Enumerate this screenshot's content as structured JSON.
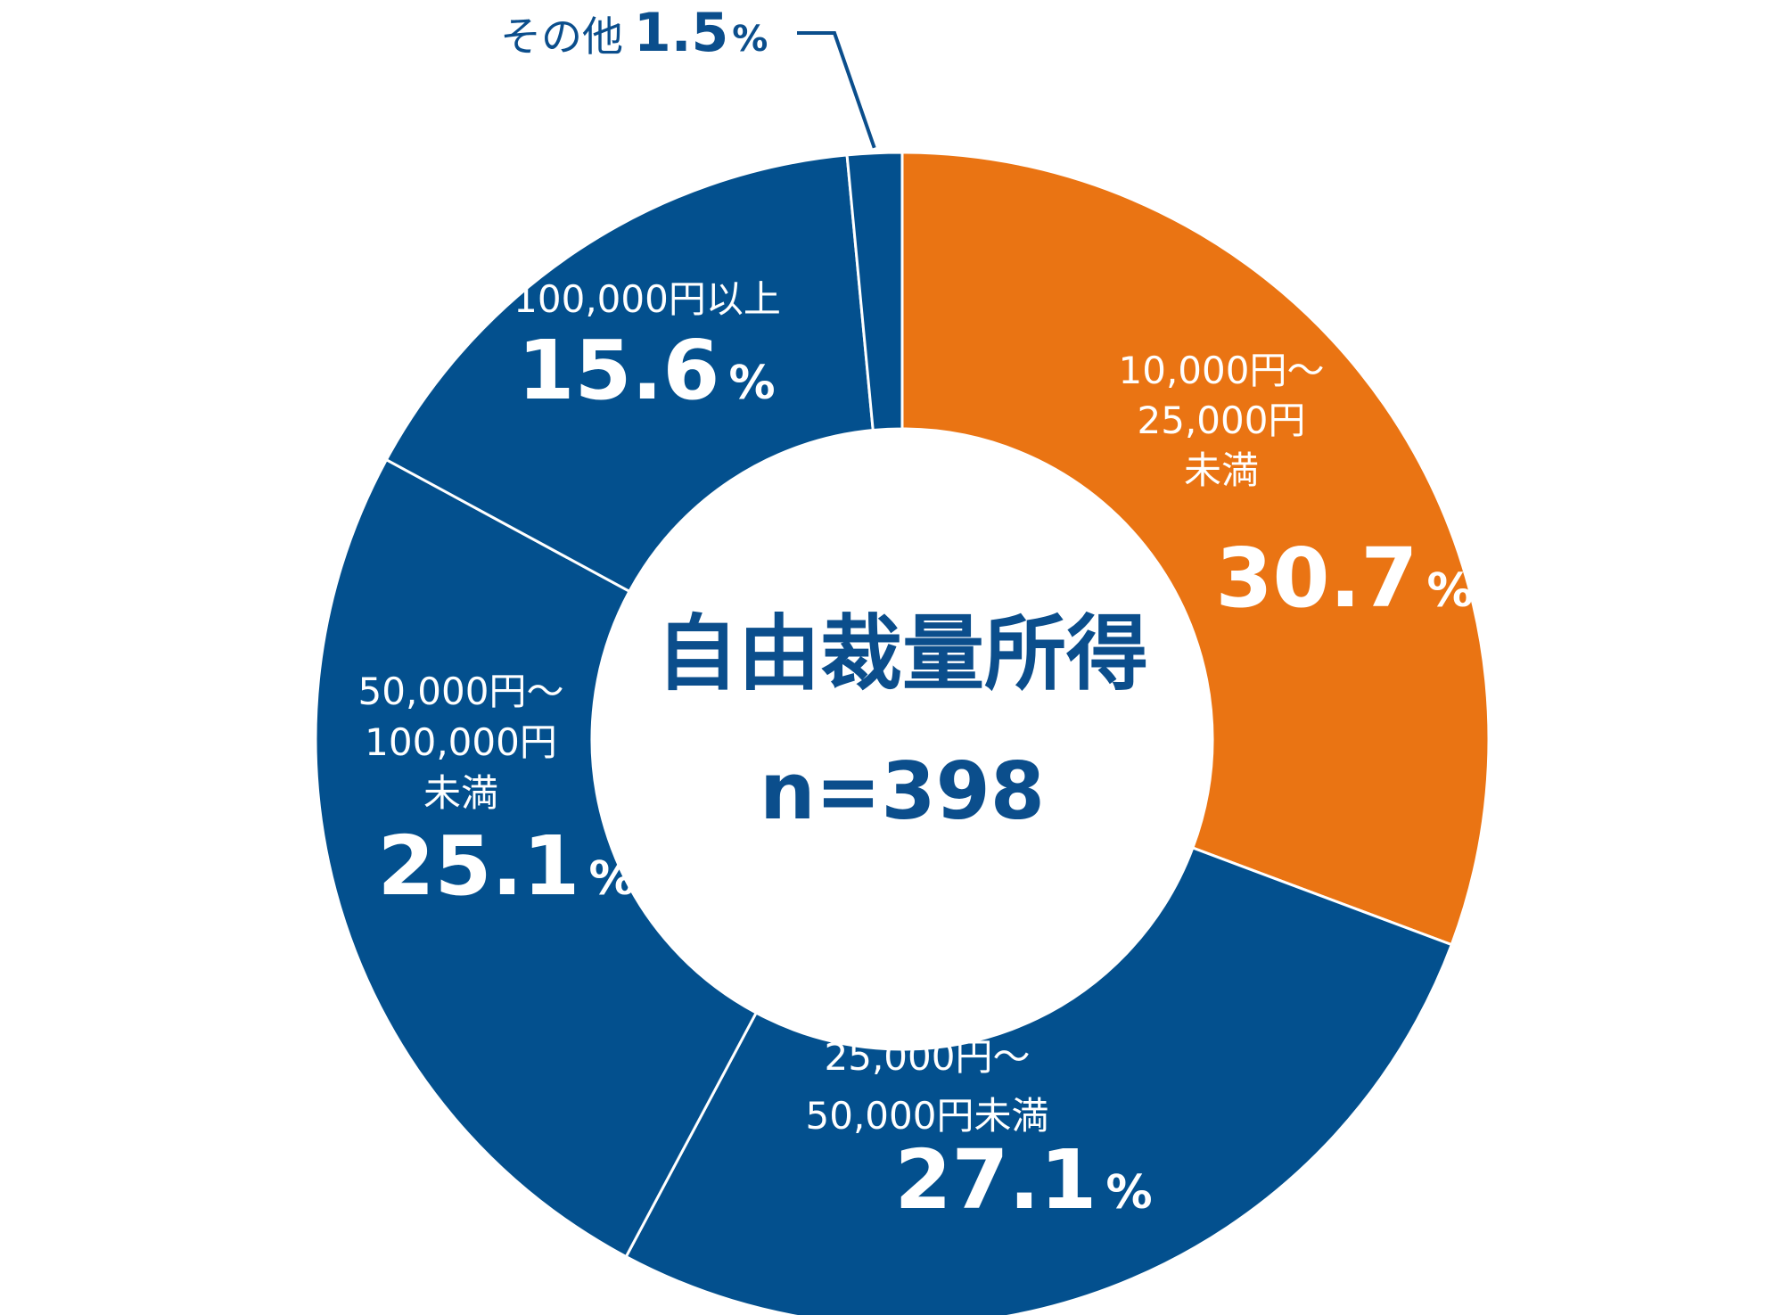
{
  "chart_data": {
    "type": "pie",
    "title": "自由裁量所得",
    "subtitle": "n=398",
    "colors": {
      "orange": "#ea7413",
      "blue": "#03508e",
      "text": "#0b4e8c"
    },
    "slices": [
      {
        "label": [
          "10,000円～",
          "25,000円",
          "未満"
        ],
        "value": 30.7,
        "value_text": "30.7",
        "unit": "%",
        "color": "#ea7413"
      },
      {
        "label": [
          "25,000円～",
          "50,000円未満"
        ],
        "value": 27.1,
        "value_text": "27.1",
        "unit": "%",
        "color": "#03508e"
      },
      {
        "label": [
          "50,000円～",
          "100,000円",
          "未満"
        ],
        "value": 25.1,
        "value_text": "25.1",
        "unit": "%",
        "color": "#03508e"
      },
      {
        "label": [
          "100,000円以上"
        ],
        "value": 15.6,
        "value_text": "15.6",
        "unit": "%",
        "color": "#03508e"
      },
      {
        "label": [
          "その他"
        ],
        "value": 1.5,
        "value_text": "1.5",
        "unit": "%",
        "color": "#03508e"
      }
    ]
  }
}
